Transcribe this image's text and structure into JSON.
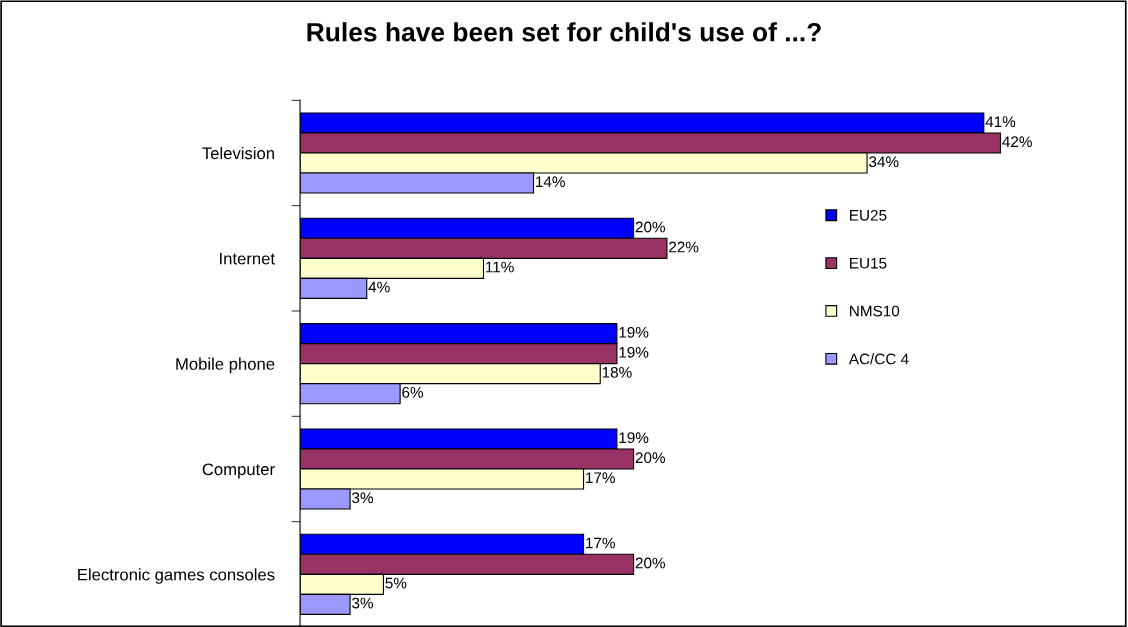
{
  "chart_data": {
    "type": "bar",
    "orientation": "horizontal",
    "title": "Rules have been set for child's use of ...?",
    "categories": [
      "Television",
      "Internet",
      "Mobile phone",
      "Computer",
      "Electronic games consoles"
    ],
    "series": [
      {
        "name": "EU25",
        "color": "#0000ff",
        "values": [
          41,
          20,
          19,
          19,
          17
        ],
        "value_labels": [
          "41%",
          "20%",
          "19%",
          "19%",
          "17%"
        ]
      },
      {
        "name": "EU15",
        "color": "#993366",
        "values": [
          42,
          22,
          19,
          20,
          20
        ],
        "value_labels": [
          "42%",
          "22%",
          "19%",
          "20%",
          "20%"
        ]
      },
      {
        "name": "NMS10",
        "color": "#ffffcc",
        "values": [
          34,
          11,
          18,
          17,
          5
        ],
        "value_labels": [
          "34%",
          "11%",
          "18%",
          "17%",
          "5%"
        ]
      },
      {
        "name": "AC/CC 4",
        "color": "#9999ff",
        "values": [
          14,
          4,
          6,
          3,
          3
        ],
        "value_labels": [
          "14%",
          "4%",
          "6%",
          "3%",
          "3%"
        ]
      }
    ],
    "tick_labels": "y",
    "grid": false,
    "legend": "right"
  }
}
